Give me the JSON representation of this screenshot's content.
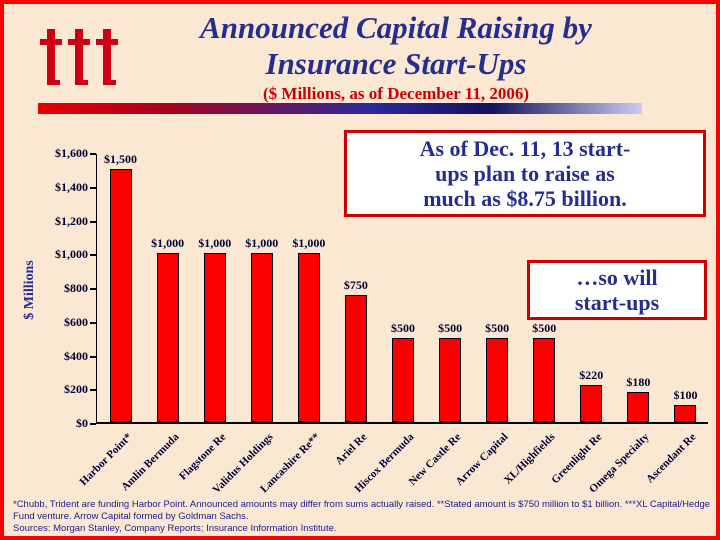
{
  "header": {
    "title_line1": "Announced Capital Raising by",
    "title_line2": "Insurance Start-Ups",
    "subtitle": "($ Millions, as of December 11, 2006)",
    "logo_icon": "iii-logo"
  },
  "callouts": {
    "main": "As of Dec. 11, 13 start-\nups plan to raise as\nmuch as $8.75 billion.",
    "secondary": "…so will\nstart-ups"
  },
  "chart_data": {
    "type": "bar",
    "title": "Announced Capital Raising by Insurance Start-Ups",
    "subtitle": "($ Millions, as of December 11, 2006)",
    "xlabel": "",
    "ylabel": "$ Millions",
    "ylim": [
      0,
      1600
    ],
    "ytick_step": 200,
    "ytick_labels": [
      "$0",
      "$200",
      "$400",
      "$600",
      "$800",
      "$1,000",
      "$1,200",
      "$1,400",
      "$1,600"
    ],
    "grid": false,
    "legend": false,
    "bar_color": "#fb0000",
    "categories": [
      "Harbor Point*",
      "Amlin Bermuda",
      "Flagstone Re",
      "Validus Holdings",
      "Lancashire Re**",
      "Ariel Re",
      "Hiscox Bermuda",
      "New Castle Re",
      "Arrow Capital",
      "XL/Highfields",
      "Greenlight Re",
      "Omega Specialty",
      "Ascendant Re"
    ],
    "values": [
      1500,
      1000,
      1000,
      1000,
      1000,
      750,
      500,
      500,
      500,
      500,
      220,
      180,
      100
    ],
    "value_labels": [
      "$1,500",
      "$1,000",
      "$1,000",
      "$1,000",
      "$1,000",
      "$750",
      "$500",
      "$500",
      "$500",
      "$500",
      "$220",
      "$180",
      "$100"
    ]
  },
  "footnotes": {
    "notes": "*Chubb, Trident are funding Harbor Point.  Announced amounts may differ from sums actually raised. **Stated amount is $750 million to $1 billion. ***XL Capital/Hedge Fund venture. Arrow Capital formed by Goldman Sachs.",
    "sources": "Sources: Morgan Stanley, Company Reports; Insurance Information Institute."
  },
  "colors": {
    "background": "#fbe8d2",
    "frame": "#ff0000",
    "title_text": "#252e8e",
    "subtitle_text": "#cc0000",
    "bar_fill": "#fb0000",
    "callout_border": "#cc0000",
    "callout_text": "#252e8e",
    "axis_text": "#000033",
    "footnote_text": "#1b1b8f",
    "logo": "#cc0012",
    "gradient_left": "#e60000",
    "gradient_mid": "#2a2a9a",
    "gradient_right": "#ccccf0"
  }
}
